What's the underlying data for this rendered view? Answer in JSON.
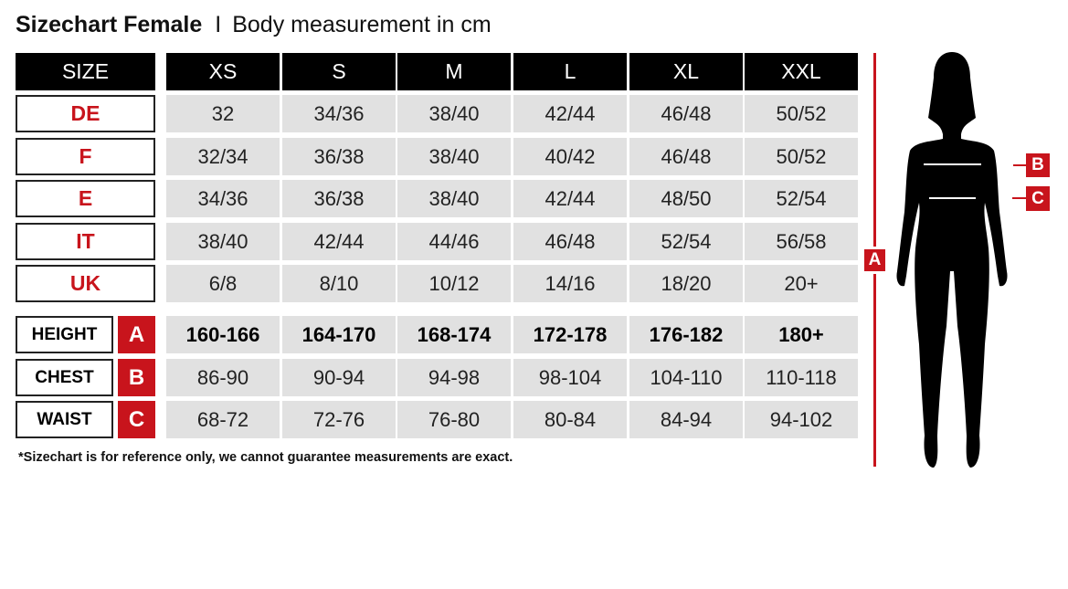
{
  "title": {
    "bold": "Sizechart Female",
    "separator": "I",
    "subtitle": "Body measurement in cm"
  },
  "table": {
    "corner_label": "SIZE",
    "sizes": [
      "XS",
      "S",
      "M",
      "L",
      "XL",
      "XXL"
    ],
    "size_rows": [
      {
        "label": "DE",
        "values": [
          "32",
          "34/36",
          "38/40",
          "42/44",
          "46/48",
          "50/52"
        ]
      },
      {
        "label": "F",
        "values": [
          "32/34",
          "36/38",
          "38/40",
          "40/42",
          "46/48",
          "50/52"
        ]
      },
      {
        "label": "E",
        "values": [
          "34/36",
          "36/38",
          "38/40",
          "42/44",
          "48/50",
          "52/54"
        ]
      },
      {
        "label": "IT",
        "values": [
          "38/40",
          "42/44",
          "44/46",
          "46/48",
          "52/54",
          "56/58"
        ]
      },
      {
        "label": "UK",
        "values": [
          "6/8",
          "8/10",
          "10/12",
          "14/16",
          "18/20",
          "20+"
        ]
      }
    ],
    "measurement_rows": [
      {
        "label": "HEIGHT",
        "badge": "A",
        "values": [
          "160-166",
          "164-170",
          "168-174",
          "172-178",
          "176-182",
          "180+"
        ]
      },
      {
        "label": "CHEST",
        "badge": "B",
        "values": [
          "86-90",
          "90-94",
          "94-98",
          "98-104",
          "104-110",
          "110-118"
        ]
      },
      {
        "label": "WAIST",
        "badge": "C",
        "values": [
          "68-72",
          "72-76",
          "76-80",
          "80-84",
          "84-94",
          "94-102"
        ]
      }
    ]
  },
  "footnote": "*Sizechart is for reference only, we cannot guarantee measurements are exact.",
  "figure": {
    "height_marker": "A",
    "chest_marker": "B",
    "waist_marker": "C"
  },
  "colors": {
    "accent_red": "#c8141c",
    "header_black": "#000000",
    "cell_gray": "#e1e1e1"
  }
}
